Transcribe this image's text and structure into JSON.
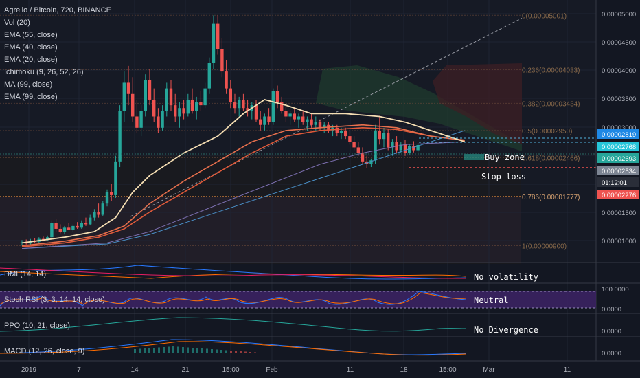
{
  "header": {
    "title": "Agrello / Bitcoin, 720, BINANCE",
    "indicators": [
      "Vol (20)",
      "EMA (55, close)",
      "EMA (40, close)",
      "EMA (20, close)",
      "Ichimoku (9, 26, 52, 26)",
      "MA (99, close)",
      "EMA (99, close)"
    ]
  },
  "panes": {
    "dmi": "DMI (14, 14)",
    "stoch": "Stoch RSI (3, 3, 14, 14, close)",
    "ppo": "PPO (10, 21, close)",
    "macd": "MACD (12, 26, close, 9)"
  },
  "annotations": {
    "buy_zone": "Buy zone",
    "stop_loss": "Stop loss",
    "no_volatility": "No volatility",
    "neutral": "Neutral",
    "no_divergence": "No Divergence"
  },
  "colors": {
    "background": "#131722",
    "candle_up": "#26a69a",
    "candle_down": "#ef5350",
    "ema20": "#f5deb3",
    "ema40": "#e8704d",
    "ema55": "#e05a3a",
    "ma99": "#7c6fb0",
    "ema99": "#4a90c8",
    "buy_zone": "#26a69a",
    "stop_loss": "#ef5350"
  },
  "chart_data": {
    "type": "candlestick",
    "symbol": "Agrello / Bitcoin",
    "interval": "720",
    "exchange": "BINANCE",
    "x_ticks": [
      "2019",
      "7",
      "14",
      "21",
      "15:00",
      "Feb",
      "11",
      "18",
      "15:00",
      "Mar",
      "11"
    ],
    "y_ticks": [
      "0.00005000",
      "0.00004500",
      "0.00004000",
      "0.00003500",
      "0.00003000",
      "0.00001500",
      "0.00001000"
    ],
    "price_labels": [
      {
        "label": "0.00002819",
        "value": 2.819e-05
      },
      {
        "label": "0.00002768",
        "value": 2.768e-05
      },
      {
        "label": "0.00002693",
        "value": 2.693e-05
      },
      {
        "label": "0.00002534",
        "value": 2.534e-05
      },
      {
        "label": "01:12:01",
        "value": 2.4e-05
      },
      {
        "label": "0.00002276",
        "value": 2.276e-05
      }
    ],
    "fib_levels": [
      {
        "label": "0(0.00005001)",
        "value": 5.001e-05
      },
      {
        "label": "0.236(0.00004033)",
        "value": 4.033e-05
      },
      {
        "label": "0.382(0.00003434)",
        "value": 3.434e-05
      },
      {
        "label": "0.5(0.00002950)",
        "value": 2.95e-05
      },
      {
        "label": "0.618(0.00002466)",
        "value": 2.466e-05
      },
      {
        "label": "0.786(0.00001777)",
        "value": 1.777e-05
      },
      {
        "label": "1(0.00000900)",
        "value": 9e-06
      }
    ],
    "dmi_ticks": [],
    "stoch_ticks": [
      "100.0000",
      "0.0000"
    ],
    "ppo_ticks": [
      "0.0000"
    ],
    "macd_ticks": [
      "0.0000"
    ],
    "ema20": [
      [
        0,
        9.5e-06
      ],
      [
        10,
        1.05e-05
      ],
      [
        17,
        1.15e-05
      ],
      [
        22,
        1.4e-05
      ],
      [
        26,
        1.85e-05
      ],
      [
        30,
        2.15e-05
      ],
      [
        38,
        2.55e-05
      ],
      [
        46,
        2.85e-05
      ],
      [
        52,
        3.25e-05
      ],
      [
        57,
        3.5e-05
      ],
      [
        62,
        3.4e-05
      ],
      [
        68,
        3.25e-05
      ],
      [
        76,
        3.25e-05
      ],
      [
        84,
        3.2e-05
      ],
      [
        90,
        3.1e-05
      ],
      [
        96,
        2.95e-05
      ],
      [
        100,
        2.85e-05
      ],
      [
        104,
        2.75e-05
      ]
    ],
    "ema40": [
      [
        0,
        9e-06
      ],
      [
        10,
        9.8e-06
      ],
      [
        18,
        1.08e-05
      ],
      [
        24,
        1.25e-05
      ],
      [
        30,
        1.65e-05
      ],
      [
        38,
        2.05e-05
      ],
      [
        46,
        2.4e-05
      ],
      [
        54,
        2.75e-05
      ],
      [
        62,
        2.95e-05
      ],
      [
        70,
        3e-05
      ],
      [
        80,
        3.05e-05
      ],
      [
        88,
        3e-05
      ],
      [
        96,
        2.85e-05
      ],
      [
        104,
        2.78e-05
      ]
    ],
    "ema55": [
      [
        0,
        8.8e-06
      ],
      [
        10,
        9.5e-06
      ],
      [
        18,
        1.05e-05
      ],
      [
        24,
        1.2e-05
      ],
      [
        30,
        1.5e-05
      ],
      [
        38,
        1.85e-05
      ],
      [
        46,
        2.2e-05
      ],
      [
        54,
        2.55e-05
      ],
      [
        62,
        2.85e-05
      ],
      [
        70,
        2.95e-05
      ],
      [
        80,
        3e-05
      ],
      [
        88,
        2.97e-05
      ],
      [
        96,
        2.85e-05
      ],
      [
        104,
        2.77e-05
      ]
    ],
    "ma99": [
      [
        0,
        8.5e-06
      ],
      [
        20,
        9.5e-06
      ],
      [
        30,
        1.15e-05
      ],
      [
        40,
        1.45e-05
      ],
      [
        50,
        1.75e-05
      ],
      [
        60,
        2.05e-05
      ],
      [
        70,
        2.35e-05
      ],
      [
        80,
        2.55e-05
      ],
      [
        90,
        2.7e-05
      ],
      [
        104,
        2.75e-05
      ]
    ],
    "ema99": [
      [
        0,
        8.5e-06
      ],
      [
        20,
        9.3e-06
      ],
      [
        30,
        1.1e-05
      ],
      [
        40,
        1.35e-05
      ],
      [
        50,
        1.6e-05
      ],
      [
        60,
        1.85e-05
      ],
      [
        70,
        2.1e-05
      ],
      [
        80,
        2.35e-05
      ],
      [
        90,
        2.6e-05
      ],
      [
        104,
        2.95e-05
      ]
    ],
    "candles": [
      {
        "o": 9.5e-06,
        "h": 1e-05,
        "l": 9e-06,
        "c": 9.6e-06
      },
      {
        "o": 9.6e-06,
        "h": 1.01e-05,
        "l": 9.2e-06,
        "c": 9.4e-06
      },
      {
        "o": 9.4e-06,
        "h": 1.02e-05,
        "l": 9.1e-06,
        "c": 9.9e-06
      },
      {
        "o": 9.9e-06,
        "h": 1.04e-05,
        "l": 9.5e-06,
        "c": 9.7e-06
      },
      {
        "o": 9.7e-06,
        "h": 1.05e-05,
        "l": 9.4e-06,
        "c": 1.02e-05
      },
      {
        "o": 1.02e-05,
        "h": 1.06e-05,
        "l": 9.8e-06,
        "c": 1e-05
      },
      {
        "o": 1e-05,
        "h": 1.08e-05,
        "l": 9.9e-06,
        "c": 1.05e-05
      },
      {
        "o": 1.05e-05,
        "h": 1.35e-05,
        "l": 1.03e-05,
        "c": 1.3e-05
      },
      {
        "o": 1.3e-05,
        "h": 1.38e-05,
        "l": 1.15e-05,
        "c": 1.2e-05
      },
      {
        "o": 1.2e-05,
        "h": 1.28e-05,
        "l": 1.12e-05,
        "c": 1.15e-05
      },
      {
        "o": 1.15e-05,
        "h": 1.25e-05,
        "l": 1.1e-05,
        "c": 1.22e-05
      },
      {
        "o": 1.22e-05,
        "h": 1.3e-05,
        "l": 1.18e-05,
        "c": 1.18e-05
      },
      {
        "o": 1.18e-05,
        "h": 1.28e-05,
        "l": 1.15e-05,
        "c": 1.25e-05
      },
      {
        "o": 1.25e-05,
        "h": 1.32e-05,
        "l": 1.2e-05,
        "c": 1.22e-05
      },
      {
        "o": 1.22e-05,
        "h": 1.35e-05,
        "l": 1.2e-05,
        "c": 1.3e-05
      },
      {
        "o": 1.3e-05,
        "h": 1.4e-05,
        "l": 1.25e-05,
        "c": 1.28e-05
      },
      {
        "o": 1.28e-05,
        "h": 1.45e-05,
        "l": 1.26e-05,
        "c": 1.4e-05
      },
      {
        "o": 1.4e-05,
        "h": 1.55e-05,
        "l": 1.35e-05,
        "c": 1.5e-05
      },
      {
        "o": 1.5e-05,
        "h": 1.65e-05,
        "l": 1.4e-05,
        "c": 1.45e-05
      },
      {
        "o": 1.45e-05,
        "h": 1.7e-05,
        "l": 1.42e-05,
        "c": 1.65e-05
      },
      {
        "o": 1.65e-05,
        "h": 1.9e-05,
        "l": 1.6e-05,
        "c": 1.85e-05
      },
      {
        "o": 1.85e-05,
        "h": 2e-05,
        "l": 1.7e-05,
        "c": 1.8e-05
      },
      {
        "o": 1.8e-05,
        "h": 2.5e-05,
        "l": 1.75e-05,
        "c": 2.4e-05
      },
      {
        "o": 2.4e-05,
        "h": 3.4e-05,
        "l": 2.3e-05,
        "c": 3.3e-05
      },
      {
        "o": 3.3e-05,
        "h": 4e-05,
        "l": 3.1e-05,
        "c": 3.8e-05
      },
      {
        "o": 3.8e-05,
        "h": 4.1e-05,
        "l": 3.4e-05,
        "c": 3.6e-05
      },
      {
        "o": 3.6e-05,
        "h": 3.9e-05,
        "l": 3.1e-05,
        "c": 3.2e-05
      },
      {
        "o": 3.2e-05,
        "h": 3.5e-05,
        "l": 2.9e-05,
        "c": 3e-05
      },
      {
        "o": 3e-05,
        "h": 3.4e-05,
        "l": 2.85e-05,
        "c": 3.3e-05
      },
      {
        "o": 3.3e-05,
        "h": 3.95e-05,
        "l": 3.2e-05,
        "c": 3.85e-05
      },
      {
        "o": 3.85e-05,
        "h": 4.05e-05,
        "l": 3.4e-05,
        "c": 3.5e-05
      },
      {
        "o": 3.5e-05,
        "h": 3.7e-05,
        "l": 3.1e-05,
        "c": 3.2e-05
      },
      {
        "o": 3.2e-05,
        "h": 3.35e-05,
        "l": 2.9e-05,
        "c": 3e-05
      },
      {
        "o": 3e-05,
        "h": 3.4e-05,
        "l": 2.95e-05,
        "c": 3.3e-05
      },
      {
        "o": 3.3e-05,
        "h": 3.8e-05,
        "l": 3.2e-05,
        "c": 3.7e-05
      },
      {
        "o": 3.7e-05,
        "h": 3.85e-05,
        "l": 3.3e-05,
        "c": 3.4e-05
      },
      {
        "o": 3.4e-05,
        "h": 3.6e-05,
        "l": 3.1e-05,
        "c": 3.2e-05
      },
      {
        "o": 3.2e-05,
        "h": 3.45e-05,
        "l": 3e-05,
        "c": 3.35e-05
      },
      {
        "o": 3.35e-05,
        "h": 3.5e-05,
        "l": 3.15e-05,
        "c": 3.25e-05
      },
      {
        "o": 3.25e-05,
        "h": 3.6e-05,
        "l": 3.2e-05,
        "c": 3.5e-05
      },
      {
        "o": 3.5e-05,
        "h": 3.7e-05,
        "l": 3.25e-05,
        "c": 3.3e-05
      },
      {
        "o": 3.3e-05,
        "h": 3.55e-05,
        "l": 3.15e-05,
        "c": 3.45e-05
      },
      {
        "o": 3.45e-05,
        "h": 3.65e-05,
        "l": 3.3e-05,
        "c": 3.4e-05
      },
      {
        "o": 3.4e-05,
        "h": 3.8e-05,
        "l": 3.35e-05,
        "c": 3.7e-05
      },
      {
        "o": 3.7e-05,
        "h": 4.25e-05,
        "l": 3.6e-05,
        "c": 4.15e-05
      },
      {
        "o": 4.15e-05,
        "h": 5e-05,
        "l": 4.05e-05,
        "c": 4.85e-05
      },
      {
        "o": 4.85e-05,
        "h": 5.001e-05,
        "l": 4.3e-05,
        "c": 4.4e-05
      },
      {
        "o": 4.4e-05,
        "h": 4.6e-05,
        "l": 3.9e-05,
        "c": 4e-05
      },
      {
        "o": 4e-05,
        "h": 4.2e-05,
        "l": 3.6e-05,
        "c": 3.7e-05
      },
      {
        "o": 3.7e-05,
        "h": 3.85e-05,
        "l": 3.35e-05,
        "c": 3.45e-05
      },
      {
        "o": 3.45e-05,
        "h": 3.6e-05,
        "l": 3.25e-05,
        "c": 3.35e-05
      },
      {
        "o": 3.35e-05,
        "h": 3.55e-05,
        "l": 3.2e-05,
        "c": 3.5e-05
      },
      {
        "o": 3.5e-05,
        "h": 3.6e-05,
        "l": 3.3e-05,
        "c": 3.35e-05
      },
      {
        "o": 3.35e-05,
        "h": 3.5e-05,
        "l": 3.2e-05,
        "c": 3.3e-05
      },
      {
        "o": 3.3e-05,
        "h": 3.45e-05,
        "l": 3.15e-05,
        "c": 3.4e-05
      },
      {
        "o": 3.4e-05,
        "h": 3.5e-05,
        "l": 3.1e-05,
        "c": 3.15e-05
      },
      {
        "o": 3.15e-05,
        "h": 3.3e-05,
        "l": 2.95e-05,
        "c": 3.05e-05
      },
      {
        "o": 3.05e-05,
        "h": 3.25e-05,
        "l": 2.95e-05,
        "c": 3.2e-05
      },
      {
        "o": 3.2e-05,
        "h": 3.35e-05,
        "l": 3.05e-05,
        "c": 3.1e-05
      },
      {
        "o": 3.1e-05,
        "h": 3.7e-05,
        "l": 3.05e-05,
        "c": 3.65e-05
      },
      {
        "o": 3.65e-05,
        "h": 3.75e-05,
        "l": 3.35e-05,
        "c": 3.45e-05
      },
      {
        "o": 3.45e-05,
        "h": 3.55e-05,
        "l": 3.25e-05,
        "c": 3.3e-05
      },
      {
        "o": 3.3e-05,
        "h": 3.4e-05,
        "l": 3.1e-05,
        "c": 3.2e-05
      },
      {
        "o": 3.2e-05,
        "h": 3.3e-05,
        "l": 3.05e-05,
        "c": 3.25e-05
      },
      {
        "o": 3.25e-05,
        "h": 3.35e-05,
        "l": 3.1e-05,
        "c": 3.15e-05
      },
      {
        "o": 3.15e-05,
        "h": 3.25e-05,
        "l": 3e-05,
        "c": 3.2e-05
      },
      {
        "o": 3.2e-05,
        "h": 3.3e-05,
        "l": 3.05e-05,
        "c": 3.1e-05
      },
      {
        "o": 3.1e-05,
        "h": 3.2e-05,
        "l": 2.95e-05,
        "c": 3.15e-05
      },
      {
        "o": 3.15e-05,
        "h": 3.25e-05,
        "l": 3e-05,
        "c": 3.05e-05
      },
      {
        "o": 3.05e-05,
        "h": 3.2e-05,
        "l": 2.95e-05,
        "c": 3.1e-05
      },
      {
        "o": 3.1e-05,
        "h": 3.15e-05,
        "l": 2.95e-05,
        "c": 3e-05
      },
      {
        "o": 3e-05,
        "h": 3.1e-05,
        "l": 2.9e-05,
        "c": 3.05e-05
      },
      {
        "o": 3.05e-05,
        "h": 3.1e-05,
        "l": 2.9e-05,
        "c": 2.95e-05
      },
      {
        "o": 2.95e-05,
        "h": 3.05e-05,
        "l": 2.85e-05,
        "c": 3e-05
      },
      {
        "o": 3e-05,
        "h": 3.05e-05,
        "l": 2.85e-05,
        "c": 2.9e-05
      },
      {
        "o": 2.9e-05,
        "h": 3e-05,
        "l": 2.8e-05,
        "c": 2.95e-05
      },
      {
        "o": 2.95e-05,
        "h": 3e-05,
        "l": 2.8e-05,
        "c": 2.85e-05
      },
      {
        "o": 2.85e-05,
        "h": 2.95e-05,
        "l": 2.7e-05,
        "c": 2.75e-05
      },
      {
        "o": 2.75e-05,
        "h": 2.85e-05,
        "l": 2.6e-05,
        "c": 2.65e-05
      },
      {
        "o": 2.65e-05,
        "h": 2.75e-05,
        "l": 2.5e-05,
        "c": 2.55e-05
      },
      {
        "o": 2.55e-05,
        "h": 2.65e-05,
        "l": 2.35e-05,
        "c": 2.4e-05
      },
      {
        "o": 2.4e-05,
        "h": 2.5e-05,
        "l": 2.28e-05,
        "c": 2.35e-05
      },
      {
        "o": 2.35e-05,
        "h": 2.45e-05,
        "l": 2.3e-05,
        "c": 2.42e-05
      },
      {
        "o": 2.42e-05,
        "h": 3.05e-05,
        "l": 2.35e-05,
        "c": 2.95e-05
      },
      {
        "o": 2.95e-05,
        "h": 3.2e-05,
        "l": 2.7e-05,
        "c": 2.8e-05
      },
      {
        "o": 2.8e-05,
        "h": 3e-05,
        "l": 2.65e-05,
        "c": 2.9e-05
      },
      {
        "o": 2.9e-05,
        "h": 2.98e-05,
        "l": 2.6e-05,
        "c": 2.65e-05
      },
      {
        "o": 2.65e-05,
        "h": 2.8e-05,
        "l": 2.5e-05,
        "c": 2.75e-05
      },
      {
        "o": 2.75e-05,
        "h": 2.85e-05,
        "l": 2.55e-05,
        "c": 2.6e-05
      },
      {
        "o": 2.6e-05,
        "h": 2.75e-05,
        "l": 2.55e-05,
        "c": 2.7e-05
      },
      {
        "o": 2.7e-05,
        "h": 2.78e-05,
        "l": 2.5e-05,
        "c": 2.55e-05
      },
      {
        "o": 2.55e-05,
        "h": 2.7e-05,
        "l": 2.52e-05,
        "c": 2.68e-05
      },
      {
        "o": 2.68e-05,
        "h": 2.76e-05,
        "l": 2.56e-05,
        "c": 2.6e-05
      },
      {
        "o": 2.6e-05,
        "h": 2.72e-05,
        "l": 2.56e-05,
        "c": 2.693e-05
      }
    ]
  }
}
